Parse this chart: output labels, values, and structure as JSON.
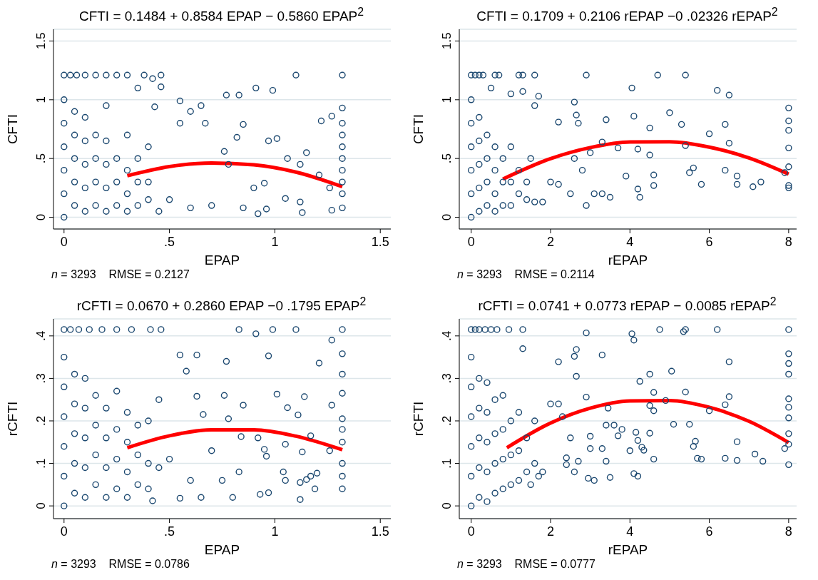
{
  "chart_data": [
    {
      "type": "scatter",
      "title": "CFTI = 0.1484 + 0.8584 EPAP − 0.5860 EPAP$^{2}$",
      "xlabel": "EPAP",
      "ylabel": "CFTI",
      "annotations": [
        "n = 3293    RMSE = 0.2127"
      ],
      "xlim": [
        -0.05,
        1.55
      ],
      "ylim": [
        -0.1,
        1.6
      ],
      "xticks": [
        0,
        {
          "value": 0.5,
          "label": ".5"
        },
        1,
        1.5
      ],
      "yticks": [
        0,
        {
          "value": 0.5,
          "label": ".5"
        },
        1,
        1.5
      ],
      "grid": "y",
      "legend": false,
      "marker": "circle",
      "series": [
        {
          "type": "scatter",
          "color": "#1a476f",
          "x": [
            0,
            0.03,
            0.06,
            0.1,
            0.15,
            0.2,
            0.25,
            0.3,
            0.38,
            0.46,
            1.1,
            1.32,
            0.42,
            0.46,
            0.35,
            0.91,
            0.99,
            0.77,
            0.83,
            0.55,
            0.65,
            0.6,
            0.43,
            1.27,
            1.32,
            1.22,
            0.67,
            0.85,
            0.55,
            0.82,
            0.97,
            1.01,
            0.76,
            1.06,
            1.12,
            1.15,
            0.78,
            0.9,
            0.95,
            1.05,
            1.12,
            1.21,
            1.26,
            1.27,
            1.13,
            0.92,
            0.96,
            0.7,
            0.6,
            0.5,
            0.45,
            0.85,
            1.32,
            1.32,
            1.32,
            1.32,
            1.32,
            1.32,
            1.32,
            1.32,
            0,
            0,
            0,
            0,
            0,
            0,
            0.05,
            0.05,
            0.05,
            0.05,
            0.05,
            0.1,
            0.1,
            0.1,
            0.1,
            0.1,
            0.15,
            0.15,
            0.15,
            0.15,
            0.2,
            0.2,
            0.2,
            0.2,
            0.2,
            0.25,
            0.25,
            0.25,
            0.3,
            0.3,
            0.3,
            0.3,
            0.35,
            0.35,
            0.35,
            0.4,
            0.4,
            0.4
          ],
          "values": [
            1.21,
            1.21,
            1.21,
            1.21,
            1.21,
            1.21,
            1.21,
            1.21,
            1.21,
            1.21,
            1.21,
            1.21,
            1.18,
            1.11,
            1.1,
            1.1,
            1.08,
            1.04,
            1.04,
            0.99,
            0.95,
            0.9,
            0.94,
            0.86,
            0.93,
            0.82,
            0.8,
            0.79,
            0.8,
            0.68,
            0.65,
            0.67,
            0.56,
            0.5,
            0.45,
            0.55,
            0.45,
            0.25,
            0.29,
            0.16,
            0.13,
            0.36,
            0.25,
            0.06,
            0.04,
            0.03,
            0.07,
            0.1,
            0.08,
            0.15,
            0.05,
            0.08,
            0.08,
            0.2,
            0.3,
            0.4,
            0.5,
            0.6,
            0.7,
            0.8,
            0,
            0.2,
            0.4,
            0.6,
            0.8,
            1.0,
            0.1,
            0.3,
            0.5,
            0.7,
            0.9,
            0.05,
            0.25,
            0.45,
            0.65,
            0.85,
            0.1,
            0.3,
            0.5,
            0.7,
            0.05,
            0.25,
            0.45,
            0.65,
            0.95,
            0.1,
            0.3,
            0.5,
            0.05,
            0.2,
            0.4,
            0.7,
            0.1,
            0.3,
            0.5,
            0.15,
            0.3,
            0.6
          ]
        },
        {
          "type": "line",
          "color": "#ff0000",
          "marker": "none",
          "line_style": "solid",
          "x": [
            0.3,
            0.5,
            0.7,
            0.9,
            1.1,
            1.32
          ],
          "values": [
            0.353,
            0.431,
            0.462,
            0.446,
            0.384,
            0.26
          ]
        }
      ]
    },
    {
      "type": "scatter",
      "title": "CFTI = 0.1709 + 0.2106 rEPAP −0 .02326 rEPAP$^{2}$",
      "xlabel": "rEPAP",
      "ylabel": "CFTI",
      "annotations": [
        "n = 3293    RMSE = 0.2114"
      ],
      "xlim": [
        -0.3,
        8.2
      ],
      "ylim": [
        -0.1,
        1.6
      ],
      "xticks": [
        0,
        2,
        4,
        6,
        8
      ],
      "yticks": [
        0,
        {
          "value": 0.5,
          "label": ".5"
        },
        1,
        1.5
      ],
      "grid": "y",
      "legend": false,
      "marker": "circle",
      "series": [
        {
          "type": "scatter",
          "color": "#1a476f",
          "x": [
            0,
            0.1,
            0.2,
            0.3,
            0.6,
            0.7,
            1.2,
            1.3,
            1.6,
            2.9,
            4.7,
            5.4,
            4.05,
            6.2,
            6.5,
            1.7,
            1.3,
            0.5,
            1.0,
            2.6,
            1.6,
            2.65,
            4.1,
            3.4,
            2.2,
            2.7,
            5.0,
            5.3,
            6.4,
            6.0,
            4.5,
            8,
            8,
            8,
            8,
            8,
            8,
            8,
            6.5,
            5.4,
            5.5,
            5.6,
            5.8,
            6.7,
            6.7,
            7.1,
            7.3,
            7.9,
            6.4,
            4.6,
            4.6,
            4.2,
            4.25,
            3.9,
            3.5,
            3.3,
            2.9,
            3.0,
            3.3,
            3.7,
            2.5,
            2.6,
            4.2,
            4.5,
            1.8,
            2.0,
            2.2,
            2.8,
            3.1,
            0,
            0,
            0,
            0,
            0,
            0,
            0.2,
            0.2,
            0.2,
            0.2,
            0.2,
            0.4,
            0.4,
            0.4,
            0.4,
            0.6,
            0.6,
            0.6,
            0.6,
            0.8,
            0.8,
            0.8,
            1.0,
            1.0,
            1.0,
            1.2,
            1.2,
            1.4,
            1.4,
            1.5,
            1.6
          ],
          "values": [
            1.21,
            1.21,
            1.21,
            1.21,
            1.21,
            1.21,
            1.21,
            1.21,
            1.21,
            1.21,
            1.21,
            1.21,
            1.1,
            1.08,
            1.04,
            1.03,
            1.07,
            1.1,
            1.05,
            0.98,
            0.95,
            0.87,
            0.86,
            0.83,
            0.81,
            0.8,
            0.89,
            0.79,
            0.79,
            0.71,
            0.76,
            0.93,
            0.82,
            0.74,
            0.59,
            0.43,
            0.27,
            0.25,
            0.63,
            0.61,
            0.38,
            0.42,
            0.28,
            0.35,
            0.28,
            0.26,
            0.3,
            0.38,
            0.4,
            0.36,
            0.27,
            0.24,
            0.17,
            0.35,
            0.17,
            0.2,
            0.1,
            0.55,
            0.64,
            0.59,
            0.2,
            0.5,
            0.58,
            0.53,
            0.13,
            0.3,
            0.28,
            0.4,
            0.2,
            0,
            0.2,
            0.4,
            0.6,
            0.8,
            1.0,
            0.05,
            0.25,
            0.45,
            0.65,
            0.85,
            0.1,
            0.3,
            0.5,
            0.7,
            0.05,
            0.2,
            0.4,
            0.6,
            0.1,
            0.3,
            0.5,
            0.1,
            0.3,
            0.6,
            0.2,
            0.4,
            0.15,
            0.3,
            0.5,
            0.13
          ]
        },
        {
          "type": "line",
          "color": "#ff0000",
          "marker": "none",
          "line_style": "solid",
          "x": [
            0.8,
            2,
            3,
            4,
            5,
            6,
            7,
            8
          ],
          "values": [
            0.325,
            0.499,
            0.593,
            0.641,
            0.642,
            0.597,
            0.505,
            0.367
          ]
        }
      ]
    },
    {
      "type": "scatter",
      "title": "rCFTI = 0.0670 + 0.2860 EPAP −0 .1795 EPAP$^{2}$",
      "xlabel": "EPAP",
      "ylabel": "rCFTI",
      "annotations": [
        "n = 3293    RMSE = 0.0786"
      ],
      "xlim": [
        -0.05,
        1.55
      ],
      "ylim": [
        -0.03,
        0.44
      ],
      "xticks": [
        0,
        {
          "value": 0.5,
          "label": ".5"
        },
        1,
        1.5
      ],
      "yticks": [
        0,
        {
          "value": 0.1,
          "label": ".1"
        },
        {
          "value": 0.2,
          "label": ".2"
        },
        {
          "value": 0.3,
          "label": ".3"
        },
        {
          "value": 0.4,
          "label": ".4"
        }
      ],
      "grid": "y",
      "legend": false,
      "marker": "circle",
      "series": [
        {
          "type": "scatter",
          "color": "#1a476f",
          "x": [
            0,
            0.03,
            0.07,
            0.12,
            0.18,
            0.25,
            0.32,
            0.41,
            0.46,
            0.83,
            0.99,
            1.1,
            1.32,
            0.91,
            1.27,
            0.97,
            1.32,
            0.77,
            1.21,
            0.55,
            0.63,
            0.58,
            1.32,
            1.32,
            1.01,
            1.14,
            0.76,
            0.63,
            0.85,
            1.06,
            1.27,
            1.11,
            0.66,
            0.78,
            1.32,
            1.32,
            0.92,
            1.17,
            1.05,
            1.26,
            1.13,
            0.84,
            0.95,
            0.96,
            1.04,
            1.2,
            1.17,
            1.15,
            1.19,
            1.05,
            1.12,
            1.32,
            1.32,
            1.32,
            1.32,
            0.93,
            0.97,
            1.12,
            0.8,
            0.65,
            0.55,
            0.42,
            0.6,
            0.75,
            0.83,
            0.7,
            0.5,
            0.45,
            0,
            0,
            0,
            0,
            0,
            0,
            0.05,
            0.05,
            0.05,
            0.05,
            0.05,
            0.1,
            0.1,
            0.1,
            0.1,
            0.1,
            0.15,
            0.15,
            0.15,
            0.15,
            0.2,
            0.2,
            0.2,
            0.2,
            0.25,
            0.25,
            0.25,
            0.25,
            0.3,
            0.3,
            0.3,
            0.3,
            0.35,
            0.35,
            0.35,
            0.4,
            0.4,
            0.4,
            0.45
          ],
          "values": [
            0.415,
            0.415,
            0.415,
            0.415,
            0.415,
            0.415,
            0.415,
            0.415,
            0.415,
            0.415,
            0.415,
            0.415,
            0.415,
            0.405,
            0.39,
            0.353,
            0.358,
            0.34,
            0.336,
            0.355,
            0.355,
            0.317,
            0.31,
            0.265,
            0.263,
            0.257,
            0.26,
            0.258,
            0.237,
            0.231,
            0.237,
            0.214,
            0.215,
            0.205,
            0.205,
            0.18,
            0.16,
            0.165,
            0.145,
            0.13,
            0.127,
            0.163,
            0.133,
            0.117,
            0.08,
            0.077,
            0.07,
            0.062,
            0.04,
            0.06,
            0.055,
            0.1,
            0.07,
            0.04,
            0.15,
            0.027,
            0.031,
            0.015,
            0.02,
            0.02,
            0.018,
            0.012,
            0.06,
            0.06,
            0.08,
            0.13,
            0.11,
            0.09,
            0,
            0.07,
            0.14,
            0.21,
            0.28,
            0.35,
            0.03,
            0.1,
            0.17,
            0.24,
            0.31,
            0.02,
            0.09,
            0.16,
            0.23,
            0.3,
            0.05,
            0.12,
            0.19,
            0.26,
            0.02,
            0.09,
            0.16,
            0.23,
            0.04,
            0.11,
            0.18,
            0.27,
            0.02,
            0.08,
            0.15,
            0.22,
            0.05,
            0.12,
            0.19,
            0.04,
            0.1,
            0.2,
            0.25
          ]
        },
        {
          "type": "line",
          "color": "#ff0000",
          "marker": "none",
          "line_style": "solid",
          "x": [
            0.3,
            0.5,
            0.7,
            0.9,
            1.1,
            1.32
          ],
          "values": [
            0.137,
            0.165,
            0.179,
            0.179,
            0.164,
            0.132
          ]
        }
      ]
    },
    {
      "type": "scatter",
      "title": "rCFTI = 0.0741 + 0.0773 rEPAP − 0.0085 rEPAP$^{2}$",
      "xlabel": "rEPAP",
      "ylabel": "rCFTI",
      "annotations": [
        "n = 3293    RMSE = 0.0777"
      ],
      "xlim": [
        -0.3,
        8.2
      ],
      "ylim": [
        -0.03,
        0.44
      ],
      "xticks": [
        0,
        2,
        4,
        6,
        8
      ],
      "yticks": [
        0,
        {
          "value": 0.1,
          "label": ".1"
        },
        {
          "value": 0.2,
          "label": ".2"
        },
        {
          "value": 0.3,
          "label": ".3"
        },
        {
          "value": 0.4,
          "label": ".4"
        }
      ],
      "grid": "y",
      "legend": false,
      "marker": "circle",
      "series": [
        {
          "type": "scatter",
          "color": "#1a476f",
          "x": [
            0,
            0.1,
            0.2,
            0.35,
            0.5,
            0.65,
            0.95,
            1.3,
            4.75,
            5.4,
            6.2,
            8,
            2.9,
            4.05,
            4.1,
            5.35,
            3.3,
            2.65,
            2.6,
            1.3,
            2.2,
            6.5,
            8,
            8,
            8,
            4.5,
            5.05,
            4.25,
            2.65,
            4.6,
            5.4,
            6.5,
            6.4,
            2.9,
            3.45,
            4.5,
            4.6,
            6.0,
            8,
            8,
            8,
            8,
            8,
            8,
            7.9,
            7.35,
            7.15,
            6.7,
            6.7,
            6.4,
            5.8,
            5.7,
            5.6,
            5.65,
            5.5,
            5.1,
            4.9,
            4.5,
            4.6,
            4.35,
            4.3,
            4.2,
            4.15,
            4.0,
            4.2,
            4.1,
            3.7,
            3.6,
            3.8,
            3.5,
            3.1,
            2.95,
            3.0,
            3.0,
            2.7,
            2.6,
            2.4,
            2.4,
            2.5,
            2.3,
            2.0,
            2.2,
            1.8,
            1.7,
            1.5,
            3.4,
            3.4,
            3.3,
            0,
            0,
            0,
            0,
            0,
            0,
            0.2,
            0.2,
            0.2,
            0.2,
            0.2,
            0.4,
            0.4,
            0.4,
            0.4,
            0.4,
            0.6,
            0.6,
            0.6,
            0.6,
            0.8,
            0.8,
            0.8,
            0.8,
            1.0,
            1.0,
            1.0,
            1.2,
            1.2,
            1.2,
            1.4,
            1.4,
            1.6,
            1.6
          ],
          "values": [
            0.415,
            0.415,
            0.415,
            0.415,
            0.415,
            0.415,
            0.415,
            0.415,
            0.415,
            0.415,
            0.415,
            0.415,
            0.407,
            0.405,
            0.39,
            0.41,
            0.355,
            0.368,
            0.352,
            0.37,
            0.339,
            0.339,
            0.358,
            0.335,
            0.31,
            0.31,
            0.317,
            0.293,
            0.305,
            0.267,
            0.268,
            0.257,
            0.238,
            0.256,
            0.23,
            0.236,
            0.224,
            0.224,
            0.252,
            0.232,
            0.207,
            0.17,
            0.145,
            0.097,
            0.135,
            0.105,
            0.122,
            0.107,
            0.151,
            0.112,
            0.11,
            0.112,
            0.14,
            0.152,
            0.192,
            0.192,
            0.248,
            0.171,
            0.11,
            0.131,
            0.138,
            0.154,
            0.173,
            0.13,
            0.07,
            0.076,
            0.165,
            0.19,
            0.18,
            0.067,
            0.06,
            0.065,
            0.135,
            0.164,
            0.105,
            0.08,
            0.113,
            0.097,
            0.16,
            0.21,
            0.24,
            0.24,
            0.08,
            0.07,
            0.05,
            0.19,
            0.105,
            0.135,
            0,
            0.07,
            0.14,
            0.21,
            0.28,
            0.35,
            0.02,
            0.09,
            0.16,
            0.23,
            0.3,
            0.01,
            0.08,
            0.15,
            0.22,
            0.29,
            0.03,
            0.1,
            0.17,
            0.25,
            0.04,
            0.11,
            0.18,
            0.26,
            0.05,
            0.12,
            0.2,
            0.06,
            0.13,
            0.22,
            0.08,
            0.16,
            0.1,
            0.2
          ]
        },
        {
          "type": "line",
          "color": "#ff0000",
          "marker": "none",
          "line_style": "solid",
          "x": [
            0.9,
            2,
            3,
            4,
            5,
            6,
            7,
            8
          ],
          "values": [
            0.137,
            0.195,
            0.23,
            0.247,
            0.248,
            0.232,
            0.199,
            0.149
          ]
        }
      ]
    }
  ]
}
